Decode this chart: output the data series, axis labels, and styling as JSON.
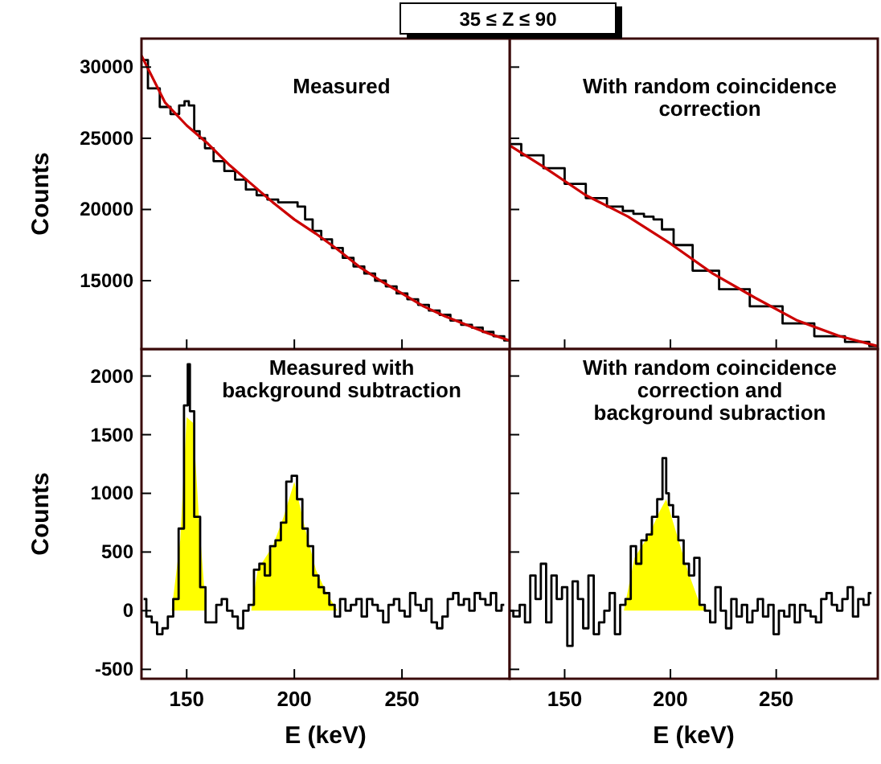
{
  "chart_data": [
    {
      "type": "line",
      "title": "35 ≤ Z ≤ 90",
      "ylabel": "Counts",
      "annotations": [
        "Measured"
      ],
      "xlim": [
        129,
        300
      ],
      "ylim": [
        10200,
        32000
      ],
      "xticks": [
        150,
        200,
        250
      ],
      "yticks": [
        15000,
        20000,
        25000,
        30000
      ],
      "tick_labels": "y",
      "series": [
        {
          "type": "step",
          "color": "#000000",
          "x": [
            129,
            135,
            140,
            145,
            148,
            150,
            152,
            155,
            157,
            160,
            165,
            170,
            175,
            180,
            185,
            190,
            195,
            200,
            203,
            207,
            210,
            215,
            220,
            225,
            230,
            235,
            240,
            245,
            250,
            255,
            260,
            265,
            270,
            275,
            280,
            285,
            290,
            295,
            300
          ],
          "values": [
            30500,
            28500,
            27200,
            26700,
            27300,
            27600,
            27300,
            25500,
            25000,
            24300,
            23400,
            22700,
            22100,
            21400,
            21000,
            20700,
            20500,
            20500,
            20200,
            19300,
            18500,
            17900,
            17300,
            16600,
            16000,
            15500,
            15000,
            14600,
            14100,
            13700,
            13300,
            12900,
            12600,
            12200,
            11900,
            11700,
            11400,
            11100,
            10800
          ]
        },
        {
          "color": "#cc0000",
          "x": [
            129,
            140,
            150,
            160,
            170,
            180,
            190,
            200,
            210,
            220,
            230,
            240,
            250,
            260,
            270,
            280,
            290,
            300
          ],
          "values": [
            30800,
            27500,
            25900,
            24600,
            23100,
            21800,
            20500,
            19300,
            18300,
            17200,
            16000,
            15000,
            14100,
            13200,
            12500,
            11900,
            11300,
            10800
          ]
        }
      ]
    },
    {
      "type": "line",
      "annotations": [
        "With random coincidence\ncorrection"
      ],
      "xlim": [
        124,
        298
      ],
      "ylim": [
        10200,
        32000
      ],
      "xticks": [
        150,
        200,
        250
      ],
      "yticks": [
        15000,
        20000,
        25000,
        30000
      ],
      "tick_labels": false,
      "series": [
        {
          "type": "step",
          "color": "#000000",
          "x": [
            124,
            135,
            145,
            155,
            165,
            175,
            180,
            185,
            190,
            194,
            198,
            205,
            216,
            230,
            245,
            261,
            275,
            290,
            298
          ],
          "values": [
            24600,
            23800,
            22900,
            21800,
            20800,
            20200,
            19900,
            19700,
            19500,
            19300,
            18600,
            17500,
            15700,
            14400,
            13200,
            12000,
            11100,
            10700,
            10400
          ]
        },
        {
          "color": "#cc0000",
          "x": [
            124,
            140,
            160,
            180,
            200,
            220,
            240,
            260,
            280,
            298
          ],
          "values": [
            24500,
            23000,
            21000,
            19500,
            17600,
            15500,
            13800,
            12200,
            11100,
            10400
          ]
        }
      ]
    },
    {
      "type": "area",
      "xlabel": "E (keV)",
      "ylabel": "Counts",
      "annotations": [
        "Measured with\nbackground subtraction"
      ],
      "xlim": [
        129,
        300
      ],
      "ylim": [
        -580,
        2230
      ],
      "xticks": [
        150,
        200,
        250
      ],
      "yticks": [
        -500,
        0,
        500,
        1000,
        1500,
        2000
      ],
      "series": [
        {
          "color": "#ffff00",
          "x": [
            143,
            147,
            150,
            153,
            156,
            159,
            180,
            183,
            190,
            195,
            200,
            205,
            210,
            215,
            220
          ],
          "values": [
            0,
            600,
            1650,
            1600,
            700,
            0,
            0,
            350,
            550,
            800,
            1100,
            700,
            350,
            150,
            0
          ]
        },
        {
          "type": "step",
          "color": "#000000",
          "x": [
            130,
            132.5,
            135,
            137.5,
            140,
            142.5,
            145,
            147.5,
            150,
            151,
            152,
            155,
            157.5,
            160,
            162.5,
            165,
            167.5,
            170,
            172.5,
            175,
            177.5,
            180,
            182.5,
            185,
            187.5,
            190,
            192.5,
            195,
            197.5,
            200,
            202.5,
            205,
            207.5,
            210,
            212.5,
            215,
            217.5,
            220,
            222.5,
            225,
            227.5,
            230,
            232.5,
            235,
            237.5,
            240,
            242.5,
            245,
            247.5,
            250,
            252.5,
            255,
            257.5,
            260,
            262.5,
            265,
            267.5,
            270,
            272.5,
            275,
            277.5,
            280,
            282.5,
            285,
            287.5,
            290,
            292.5,
            295,
            297.5
          ],
          "values": [
            100,
            -50,
            -100,
            -200,
            -150,
            -50,
            100,
            700,
            1750,
            2100,
            1700,
            800,
            200,
            -100,
            -100,
            50,
            100,
            0,
            -50,
            -150,
            0,
            50,
            350,
            400,
            300,
            550,
            600,
            750,
            1100,
            1150,
            950,
            700,
            550,
            300,
            200,
            150,
            50,
            -50,
            100,
            0,
            50,
            100,
            -50,
            100,
            50,
            0,
            -100,
            50,
            100,
            0,
            -50,
            150,
            50,
            0,
            100,
            -100,
            -150,
            -50,
            100,
            150,
            50,
            100,
            0,
            150,
            100,
            50,
            150,
            0,
            50
          ]
        }
      ]
    },
    {
      "type": "area",
      "xlabel": "E (keV)",
      "annotations": [
        "With random coincidence\ncorrection and\nbackground subraction"
      ],
      "xlim": [
        124,
        298
      ],
      "ylim": [
        -580,
        2230
      ],
      "xticks": [
        150,
        200,
        250
      ],
      "yticks": [
        -500,
        0,
        500,
        1000,
        1500,
        2000
      ],
      "tick_labels": "x",
      "series": [
        {
          "color": "#ffff00",
          "x": [
            178,
            183,
            190,
            195,
            198,
            203,
            208,
            214,
            218
          ],
          "values": [
            0,
            450,
            650,
            850,
            950,
            650,
            350,
            50,
            0
          ]
        },
        {
          "type": "step",
          "color": "#000000",
          "x": [
            124,
            127.5,
            130,
            132.5,
            135,
            137.5,
            140,
            142.5,
            145,
            147.5,
            150,
            152.5,
            155,
            157.5,
            160,
            162.5,
            165,
            167.5,
            170,
            172.5,
            175,
            177.5,
            180,
            182.5,
            185,
            187.5,
            190,
            192.5,
            195,
            197.5,
            198.5,
            200,
            202.5,
            205,
            207.5,
            210,
            212.5,
            215,
            217.5,
            220,
            222.5,
            225,
            227.5,
            230,
            232.5,
            235,
            237.5,
            240,
            242.5,
            245,
            247.5,
            250,
            252.5,
            255,
            257.5,
            260,
            262.5,
            265,
            267.5,
            270,
            272.5,
            275,
            277.5,
            280,
            282.5,
            285,
            287.5,
            290,
            292.5,
            295
          ],
          "values": [
            0,
            -50,
            50,
            -100,
            300,
            100,
            400,
            -100,
            300,
            100,
            200,
            -300,
            250,
            100,
            -150,
            300,
            -200,
            -100,
            0,
            150,
            -200,
            50,
            100,
            550,
            400,
            600,
            650,
            800,
            950,
            1300,
            1000,
            900,
            800,
            600,
            400,
            300,
            450,
            50,
            0,
            -100,
            200,
            0,
            -150,
            100,
            -50,
            50,
            -100,
            0,
            100,
            -50,
            50,
            -200,
            0,
            -50,
            50,
            -100,
            50,
            0,
            -50,
            -100,
            100,
            150,
            50,
            0,
            100,
            200,
            -50,
            100,
            50,
            150
          ]
        }
      ]
    }
  ]
}
